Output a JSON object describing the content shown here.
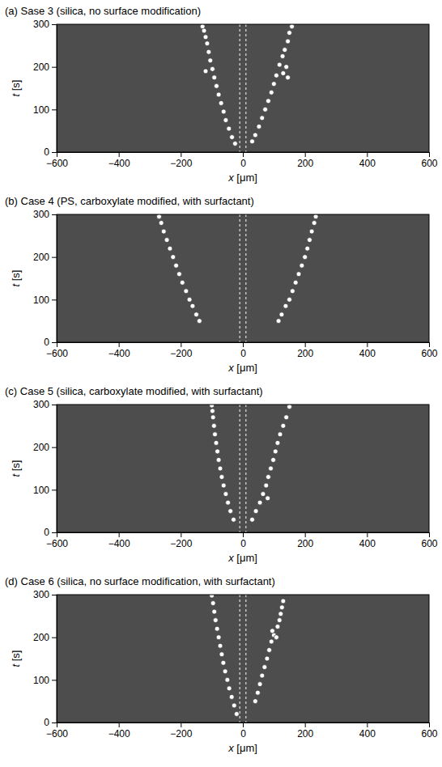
{
  "chart_data": [
    {
      "type": "scatter",
      "title": "(a) Sase 3 (silica, no surface modification)",
      "x_label": "x [μm]",
      "y_label": "t [s]",
      "xlim": [
        -600,
        600
      ],
      "ylim": [
        0,
        300
      ],
      "xticks": [
        -600,
        -400,
        -200,
        0,
        200,
        400,
        600
      ],
      "yticks": [
        0,
        100,
        200,
        300
      ],
      "vlines": [
        -10,
        10
      ],
      "series": [
        {
          "color": "#ffffff",
          "marker": "circle",
          "x": [
            -25,
            -35,
            -45,
            -55,
            -62,
            -70,
            -78,
            -85,
            -92,
            -98,
            -105,
            -110,
            -115,
            -120,
            -125,
            -130,
            -120
          ],
          "values": [
            20,
            35,
            55,
            75,
            95,
            115,
            135,
            155,
            175,
            195,
            215,
            235,
            255,
            270,
            285,
            295,
            190
          ]
        },
        {
          "color": "#ffffff",
          "marker": "circle",
          "x": [
            30,
            40,
            52,
            62,
            72,
            82,
            92,
            100,
            108,
            118,
            128,
            135,
            145,
            150,
            158,
            140,
            130,
            145
          ],
          "values": [
            25,
            40,
            60,
            80,
            100,
            120,
            140,
            160,
            180,
            205,
            225,
            240,
            260,
            280,
            295,
            200,
            185,
            175
          ]
        }
      ]
    },
    {
      "type": "scatter",
      "title": "(b) Case 4 (PS, carboxylate modified, with surfactant)",
      "x_label": "x [μm]",
      "y_label": "t [s]",
      "xlim": [
        -600,
        600
      ],
      "ylim": [
        0,
        300
      ],
      "xticks": [
        -600,
        -400,
        -200,
        0,
        200,
        400,
        600
      ],
      "yticks": [
        0,
        100,
        200,
        300
      ],
      "vlines": [
        -10,
        10
      ],
      "series": [
        {
          "color": "#ffffff",
          "marker": "circle",
          "x": [
            -140,
            -150,
            -162,
            -172,
            -183,
            -195,
            -205,
            -215,
            -225,
            -235,
            -245,
            -255,
            -263,
            -270
          ],
          "values": [
            50,
            65,
            85,
            100,
            120,
            140,
            160,
            180,
            200,
            220,
            240,
            260,
            280,
            295
          ]
        },
        {
          "color": "#ffffff",
          "marker": "circle",
          "x": [
            115,
            125,
            138,
            150,
            160,
            170,
            180,
            190,
            200,
            208,
            215,
            222,
            230,
            235
          ],
          "values": [
            50,
            65,
            85,
            100,
            120,
            140,
            160,
            180,
            200,
            220,
            240,
            260,
            280,
            295
          ]
        }
      ]
    },
    {
      "type": "scatter",
      "title": "(c) Case 5 (silica, carboxylate modified, with surfactant)",
      "x_label": "x [μm]",
      "y_label": "t [s]",
      "xlim": [
        -600,
        600
      ],
      "ylim": [
        0,
        300
      ],
      "xticks": [
        -600,
        -400,
        -200,
        0,
        200,
        400,
        600
      ],
      "yticks": [
        0,
        100,
        200,
        300
      ],
      "vlines": [
        -10,
        10
      ],
      "series": [
        {
          "color": "#ffffff",
          "marker": "circle",
          "x": [
            -30,
            -40,
            -48,
            -55,
            -62,
            -68,
            -73,
            -78,
            -82,
            -86,
            -90,
            -93,
            -96,
            -98,
            -100
          ],
          "values": [
            30,
            50,
            70,
            90,
            110,
            130,
            150,
            170,
            190,
            210,
            230,
            250,
            270,
            285,
            298
          ]
        },
        {
          "color": "#ffffff",
          "marker": "circle",
          "x": [
            30,
            42,
            55,
            65,
            75,
            82,
            90,
            98,
            105,
            112,
            120,
            130,
            140,
            150,
            80
          ],
          "values": [
            30,
            50,
            70,
            90,
            110,
            130,
            150,
            170,
            190,
            210,
            230,
            250,
            270,
            295,
            80
          ]
        }
      ]
    },
    {
      "type": "scatter",
      "title": "(d) Case 6 (silica, no surface modification, with surfactant)",
      "x_label": "x [μm]",
      "y_label": "t [s]",
      "xlim": [
        -600,
        600
      ],
      "ylim": [
        0,
        300
      ],
      "xticks": [
        -600,
        -400,
        -200,
        0,
        200,
        400,
        600
      ],
      "yticks": [
        0,
        100,
        200,
        300
      ],
      "vlines": [
        -10,
        10
      ],
      "series": [
        {
          "color": "#ffffff",
          "marker": "circle",
          "x": [
            -20,
            -28,
            -36,
            -44,
            -50,
            -57,
            -63,
            -68,
            -73,
            -78,
            -83,
            -88,
            -92,
            -96,
            -100
          ],
          "values": [
            20,
            40,
            60,
            80,
            100,
            120,
            140,
            160,
            180,
            200,
            220,
            240,
            260,
            280,
            298
          ]
        },
        {
          "color": "#ffffff",
          "marker": "circle",
          "x": [
            40,
            48,
            55,
            62,
            70,
            78,
            85,
            92,
            100,
            95,
            108,
            112,
            118,
            122,
            126,
            130
          ],
          "values": [
            50,
            70,
            90,
            110,
            130,
            150,
            170,
            190,
            205,
            215,
            200,
            225,
            240,
            255,
            270,
            285
          ]
        }
      ]
    }
  ]
}
